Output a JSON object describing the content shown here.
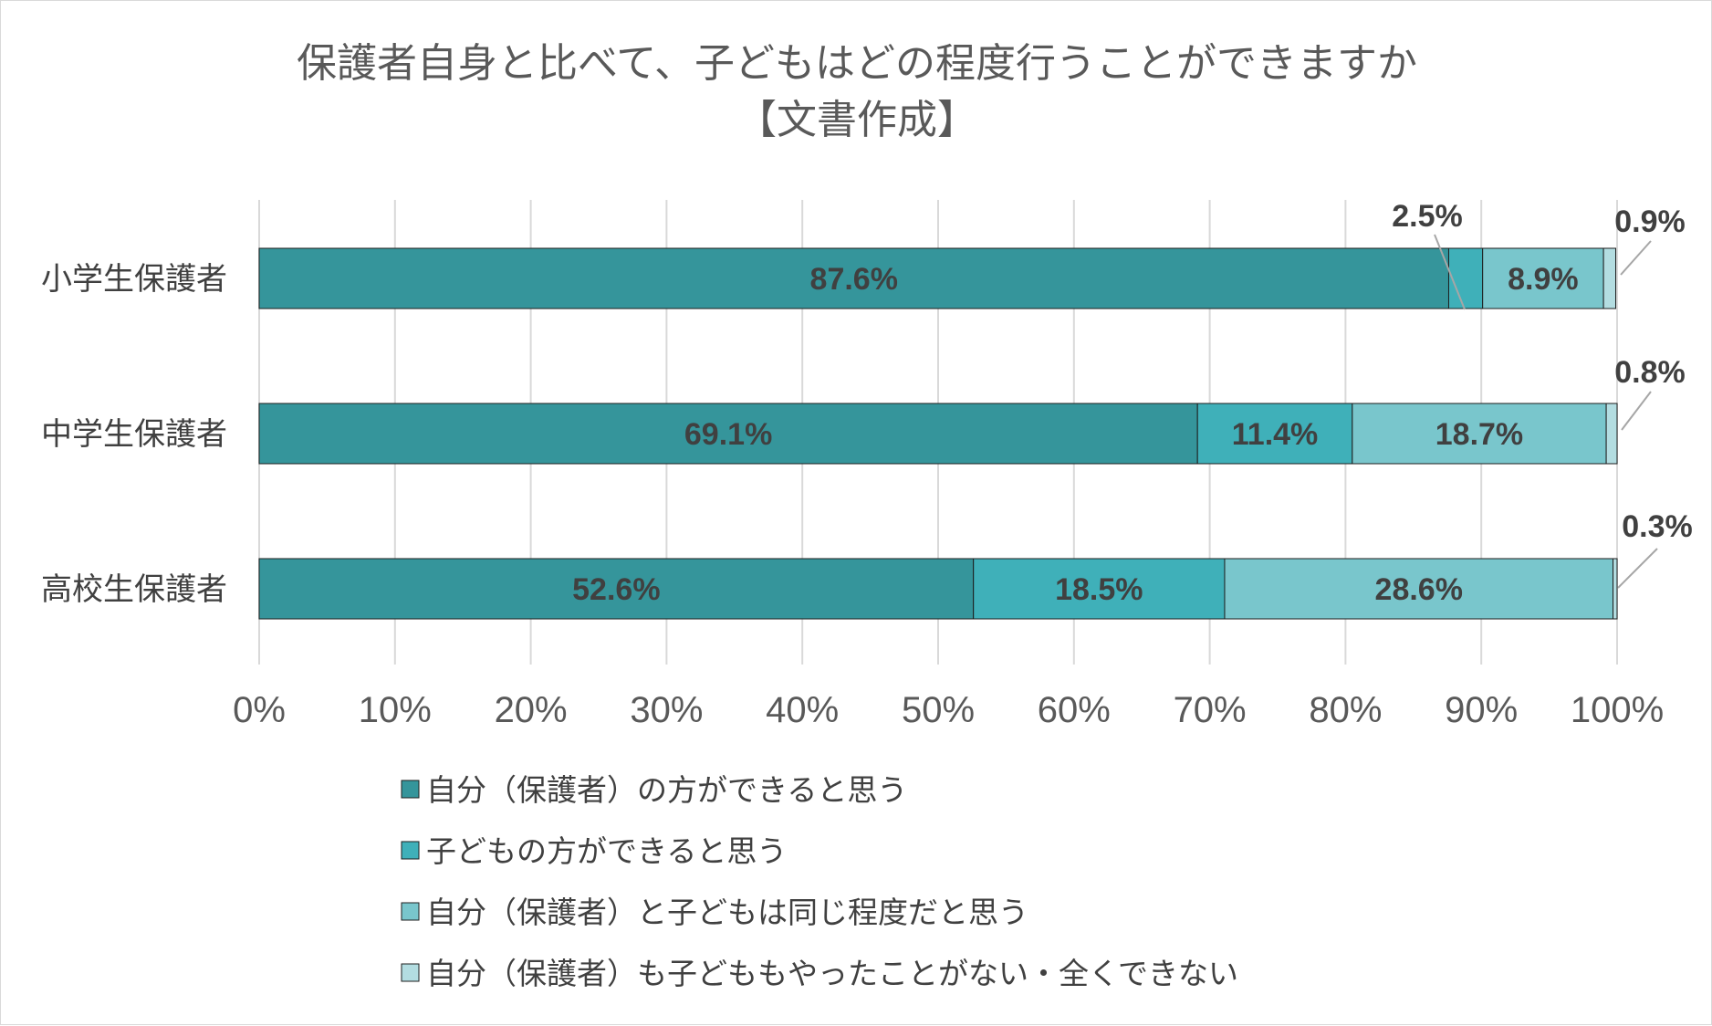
{
  "chart_data": {
    "type": "bar",
    "orientation": "horizontal",
    "stacked": "percent",
    "title": "保護者自身と比べて、子どもはどの程度行うことができますか",
    "subtitle": "【文書作成】",
    "categories": [
      "小学生保護者",
      "中学生保護者",
      "高校生保護者"
    ],
    "series": [
      {
        "name": "自分（保護者）の方ができると思う",
        "values": [
          87.6,
          69.1,
          52.6
        ],
        "color": "#35959b"
      },
      {
        "name": "子どもの方ができると思う",
        "values": [
          2.5,
          11.4,
          18.5
        ],
        "color": "#3fb0b9"
      },
      {
        "name": "自分（保護者）と子どもは同じ程度だと思う",
        "values": [
          8.9,
          18.7,
          28.6
        ],
        "color": "#79c6cc"
      },
      {
        "name": "自分（保護者）も子どももやったことがない・全くできない",
        "values": [
          0.9,
          0.8,
          0.3
        ],
        "color": "#b3dde1"
      }
    ],
    "data_labels": [
      [
        "87.6%",
        "2.5%",
        "8.9%",
        "0.9%"
      ],
      [
        "69.1%",
        "11.4%",
        "18.7%",
        "0.8%"
      ],
      [
        "52.6%",
        "18.5%",
        "28.6%",
        "0.3%"
      ]
    ],
    "xlim": [
      0,
      100
    ],
    "xticks": [
      "0%",
      "10%",
      "20%",
      "30%",
      "40%",
      "50%",
      "60%",
      "70%",
      "80%",
      "90%",
      "100%"
    ],
    "grid": "vertical",
    "legend_position": "bottom"
  }
}
